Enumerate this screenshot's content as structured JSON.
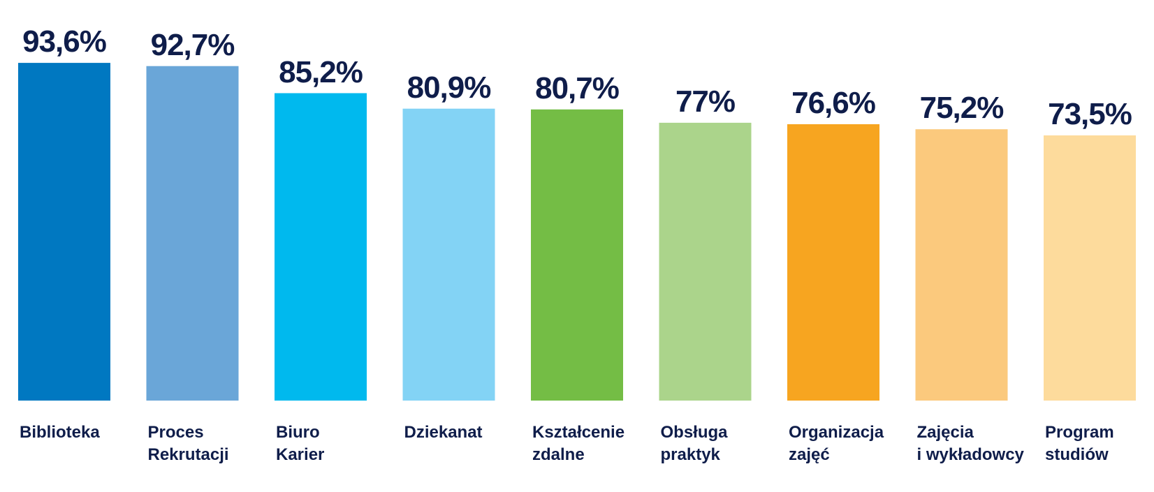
{
  "chart_data": {
    "type": "bar",
    "title": "",
    "xlabel": "",
    "ylabel": "",
    "ylim": [
      0,
      100
    ],
    "grid": false,
    "legend": "none",
    "categories": [
      [
        "Biblioteka"
      ],
      [
        "Proces",
        "Rekrutacji"
      ],
      [
        "Biuro",
        "Karier"
      ],
      [
        "Dziekanat"
      ],
      [
        "Kształcenie",
        "zdalne"
      ],
      [
        "Obsługa",
        "praktyk"
      ],
      [
        "Organizacja",
        "zajęć"
      ],
      [
        "Zajęcia",
        "i wykładowcy"
      ],
      [
        "Program",
        "studiów"
      ]
    ],
    "values": [
      93.6,
      92.7,
      85.2,
      80.9,
      80.7,
      77,
      76.6,
      75.2,
      73.5
    ],
    "value_labels": [
      "93,6%",
      "92,7%",
      "85,2%",
      "80,9%",
      "80,7%",
      "77%",
      "76,6%",
      "75,2%",
      "73,5%"
    ],
    "colors": [
      "#0078c1",
      "#6aa6d8",
      "#00b9ee",
      "#83d3f5",
      "#74bd45",
      "#abd48b",
      "#f7a520",
      "#fbc97d",
      "#fddb9c"
    ],
    "label_color": "#0f1d4a"
  }
}
